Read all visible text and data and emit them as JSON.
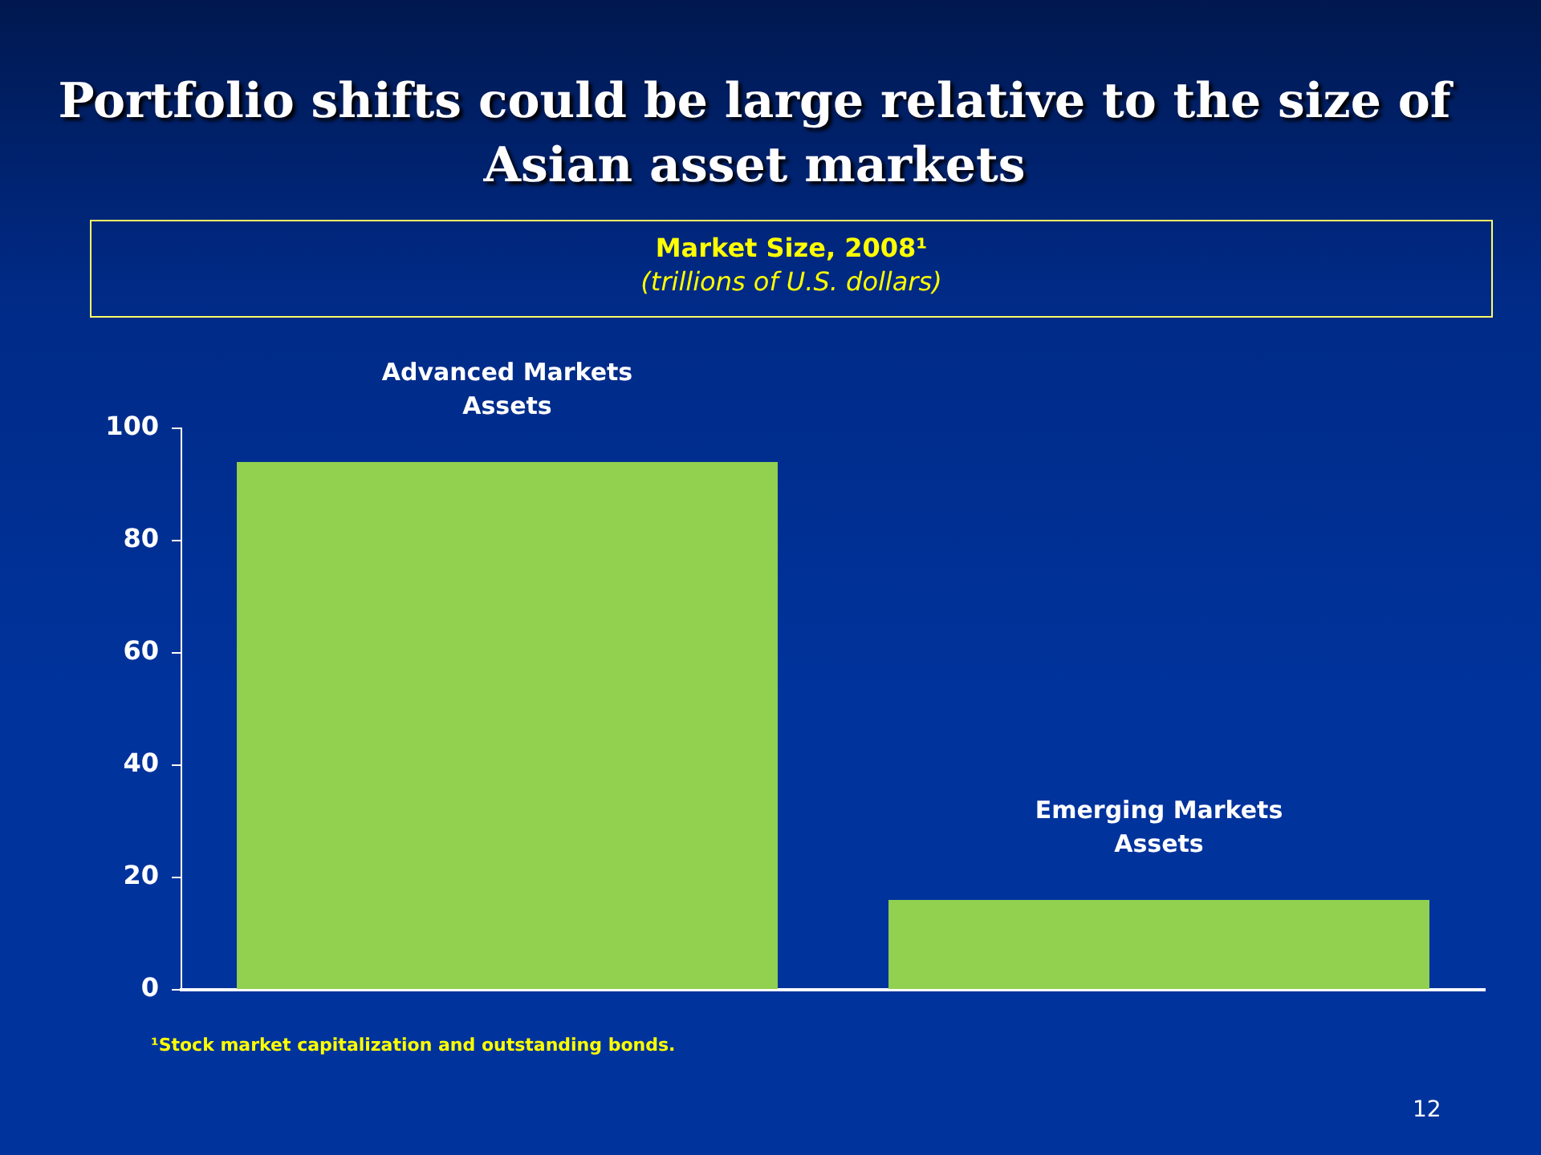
{
  "chart_data": {
    "type": "bar",
    "title": "Portfolio shifts could be large relative to the size of Asian asset markets",
    "subtitle": "Market Size, 2008¹",
    "ylabel": "(trillions of U.S. dollars)",
    "categories": [
      "Advanced Markets Assets",
      "Emerging Markets Assets"
    ],
    "values": [
      94,
      16
    ],
    "color": "#92d050",
    "ylim": [
      0,
      100
    ],
    "yticks": [
      0,
      20,
      40,
      60,
      80,
      100
    ],
    "grid": false,
    "annotations": [
      "¹Stock market capitalization and outstanding bonds.",
      "12"
    ]
  }
}
